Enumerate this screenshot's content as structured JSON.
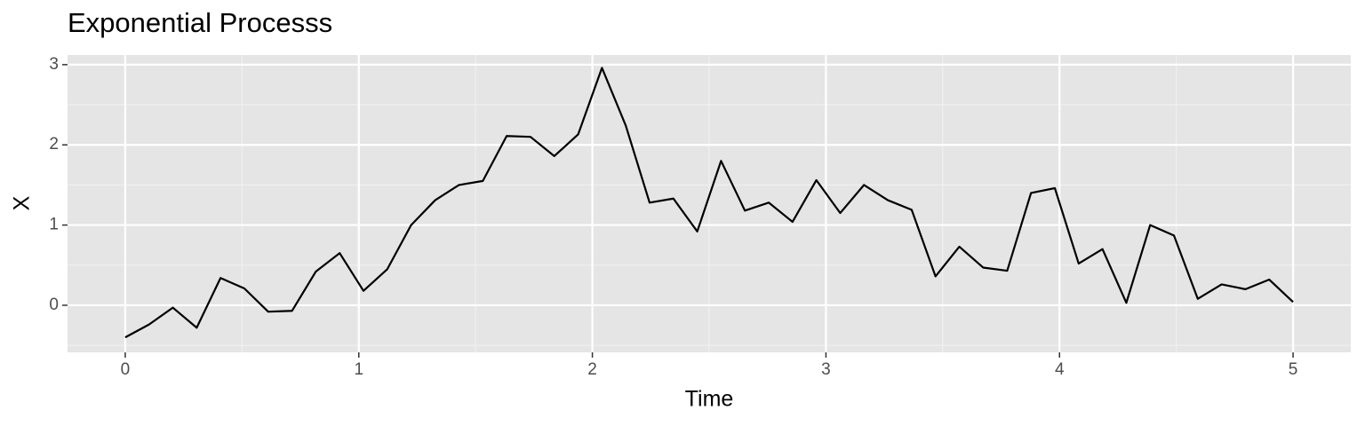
{
  "chart_data": {
    "type": "line",
    "title": "Exponential Processs",
    "xlabel": "Time",
    "ylabel": "X",
    "x": [
      0,
      0.102,
      0.204,
      0.306,
      0.408,
      0.51,
      0.612,
      0.714,
      0.816,
      0.918,
      1.02,
      1.122,
      1.224,
      1.327,
      1.429,
      1.531,
      1.633,
      1.735,
      1.837,
      1.939,
      2.041,
      2.143,
      2.245,
      2.347,
      2.449,
      2.551,
      2.653,
      2.755,
      2.857,
      2.959,
      3.061,
      3.163,
      3.265,
      3.367,
      3.469,
      3.571,
      3.673,
      3.776,
      3.878,
      3.98,
      4.082,
      4.184,
      4.286,
      4.388,
      4.49,
      4.592,
      4.694,
      4.796,
      4.898,
      5.0
    ],
    "series": [
      {
        "color": "#000000",
        "values": [
          -0.4,
          -0.24,
          -0.03,
          -0.28,
          0.34,
          0.21,
          -0.08,
          -0.07,
          0.42,
          0.65,
          0.18,
          0.45,
          1.0,
          1.31,
          1.5,
          1.55,
          2.11,
          2.1,
          1.86,
          2.13,
          2.96,
          2.24,
          1.28,
          1.33,
          0.92,
          1.8,
          1.18,
          1.28,
          1.04,
          1.56,
          1.15,
          1.5,
          1.31,
          1.19,
          0.36,
          0.73,
          0.47,
          0.43,
          1.4,
          1.46,
          0.52,
          0.7,
          0.03,
          1.0,
          0.87,
          0.08,
          0.26,
          0.2,
          0.32,
          0.04
        ]
      }
    ],
    "xlim": [
      -0.247,
      5.247
    ],
    "ylim": [
      -0.587,
      3.12
    ],
    "xticks": [
      0,
      1,
      2,
      3,
      4,
      5
    ],
    "yticks": [
      0,
      1,
      2,
      3
    ],
    "xminor_ticks": [
      0.5,
      1.5,
      2.5,
      3.5,
      4.5
    ],
    "yminor_ticks": [
      -0.5,
      0.5,
      1.5,
      2.5
    ],
    "grid": true
  }
}
